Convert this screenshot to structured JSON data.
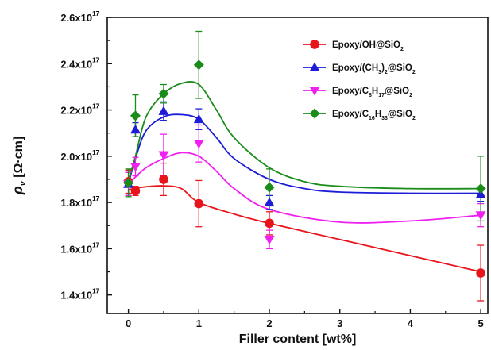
{
  "chart_data": {
    "type": "scatter",
    "xlabel": "Filler content [wt%]",
    "ylabel": "ρv [Ω·cm]",
    "xlim": [
      -0.3,
      5.1
    ],
    "ylim": [
      1.32,
      2.6
    ],
    "y_scale_label": "x10",
    "y_exponent": "17",
    "x_ticks": [
      0,
      1,
      2,
      3,
      4,
      5
    ],
    "x_tick_labels": [
      "0",
      "1",
      "2",
      "3",
      "4",
      "5"
    ],
    "y_ticks": [
      1.4,
      1.6,
      1.8,
      2.0,
      2.2,
      2.4,
      2.6
    ],
    "y_tick_labels": [
      "1.4",
      "1.6",
      "1.8",
      "2.0",
      "2.2",
      "2.4",
      "2.6"
    ],
    "grid": false,
    "legend_position": "top-right",
    "series": [
      {
        "name": "Epoxy/OH@SiO2",
        "legend": {
          "parts": [
            "Epoxy/OH@SiO",
            "2"
          ]
        },
        "color": "#e8141c",
        "marker": "circle",
        "x": [
          0,
          0.1,
          0.5,
          1,
          2,
          5
        ],
        "y": [
          1.89,
          1.85,
          1.9,
          1.795,
          1.71,
          1.495
        ],
        "err": [
          0.05,
          0.02,
          0.07,
          0.1,
          0.05,
          0.12
        ],
        "fit": [
          [
            0,
            1.855
          ],
          [
            0.1,
            1.862
          ],
          [
            0.25,
            1.868
          ],
          [
            0.5,
            1.872
          ],
          [
            0.75,
            1.86
          ],
          [
            1,
            1.8
          ],
          [
            1.5,
            1.75
          ],
          [
            2,
            1.71
          ],
          [
            3,
            1.64
          ],
          [
            4,
            1.57
          ],
          [
            5,
            1.5
          ]
        ]
      },
      {
        "name": "Epoxy/(CH3)2@SiO2",
        "legend": {
          "parts": [
            "Epoxy/(CH",
            "3",
            ")",
            "2",
            "@SiO",
            "2"
          ]
        },
        "color": "#1c1cd9",
        "marker": "triangle-up",
        "x": [
          0,
          0.1,
          0.5,
          1,
          2,
          5
        ],
        "y": [
          1.88,
          2.115,
          2.195,
          2.16,
          1.8,
          1.835
        ],
        "err": [
          0.05,
          0.03,
          0.04,
          0.045,
          0.03,
          0.03
        ],
        "fit": [
          [
            0,
            1.88
          ],
          [
            0.1,
            1.99
          ],
          [
            0.25,
            2.11
          ],
          [
            0.5,
            2.17
          ],
          [
            0.75,
            2.18
          ],
          [
            1,
            2.16
          ],
          [
            1.25,
            2.08
          ],
          [
            1.5,
            1.99
          ],
          [
            2,
            1.9
          ],
          [
            2.5,
            1.86
          ],
          [
            3,
            1.845
          ],
          [
            4,
            1.84
          ],
          [
            5,
            1.84
          ]
        ]
      },
      {
        "name": "Epoxy/C8H17@SiO2",
        "legend": {
          "parts": [
            "Epoxy/C",
            "8",
            "H",
            "17",
            "@SiO",
            "2"
          ]
        },
        "color": "#f020f0",
        "marker": "triangle-down",
        "x": [
          0,
          0.1,
          0.5,
          1,
          2,
          5
        ],
        "y": [
          1.88,
          1.955,
          2.005,
          2.055,
          1.64,
          1.745
        ],
        "err": [
          0.05,
          0.04,
          0.09,
          0.08,
          0.04,
          0.05
        ],
        "fit": [
          [
            0,
            1.88
          ],
          [
            0.1,
            1.91
          ],
          [
            0.25,
            1.95
          ],
          [
            0.5,
            1.99
          ],
          [
            0.75,
            2.015
          ],
          [
            1,
            2.0
          ],
          [
            1.25,
            1.935
          ],
          [
            1.5,
            1.86
          ],
          [
            2,
            1.77
          ],
          [
            3,
            1.715
          ],
          [
            4,
            1.72
          ],
          [
            5,
            1.745
          ]
        ]
      },
      {
        "name": "Epoxy/C16H33@SiO2",
        "legend": {
          "parts": [
            "Epoxy/C",
            "16",
            "H",
            "33",
            "@SiO",
            "2"
          ]
        },
        "color": "#1a8c1a",
        "marker": "diamond",
        "x": [
          0,
          0.1,
          0.5,
          1,
          2,
          5
        ],
        "y": [
          1.885,
          2.175,
          2.27,
          2.395,
          1.865,
          1.86
        ],
        "err": [
          0.06,
          0.09,
          0.04,
          0.145,
          0.08,
          0.14
        ],
        "fit": [
          [
            0,
            1.89
          ],
          [
            0.1,
            2.0
          ],
          [
            0.25,
            2.17
          ],
          [
            0.5,
            2.27
          ],
          [
            0.75,
            2.315
          ],
          [
            1,
            2.31
          ],
          [
            1.25,
            2.2
          ],
          [
            1.5,
            2.08
          ],
          [
            2,
            1.95
          ],
          [
            2.5,
            1.89
          ],
          [
            3,
            1.87
          ],
          [
            4,
            1.86
          ],
          [
            5,
            1.86
          ]
        ]
      }
    ]
  }
}
